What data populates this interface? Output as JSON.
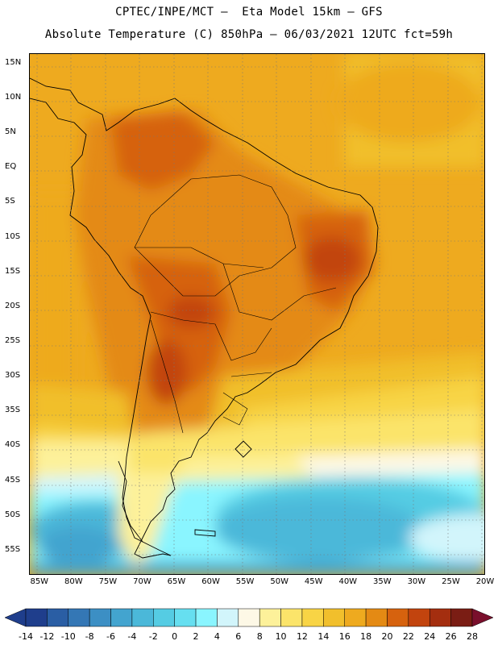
{
  "header": {
    "line1": "CPTEC/INPE/MCT –  Eta Model 15km – GFS",
    "line2": "Absolute Temperature (C) 850hPa – 06/03/2021 12UTC fct=59h"
  },
  "map": {
    "lat_labels": [
      "15N",
      "10N",
      "5N",
      "EQ",
      "5S",
      "10S",
      "15S",
      "20S",
      "25S",
      "30S",
      "35S",
      "40S",
      "45S",
      "50S",
      "55S"
    ],
    "lon_labels": [
      "85W",
      "80W",
      "75W",
      "70W",
      "65W",
      "60W",
      "55W",
      "50W",
      "45W",
      "40W",
      "35W",
      "30W",
      "25W",
      "20W"
    ],
    "lat_range": [
      16.5,
      -58.5
    ],
    "lon_range": [
      -86.5,
      -20
    ]
  },
  "colorbar": {
    "labels": [
      "-14",
      "-12",
      "-10",
      "-8",
      "-6",
      "-4",
      "-2",
      "0",
      "2",
      "4",
      "6",
      "8",
      "10",
      "12",
      "14",
      "16",
      "18",
      "20",
      "22",
      "24",
      "26",
      "28"
    ],
    "colors": [
      "#1f3e8c",
      "#2a5ea4",
      "#3477b5",
      "#3c8fc4",
      "#43a4cf",
      "#4bb8d9",
      "#55cce3",
      "#66dff0",
      "#8af5ff",
      "#d2f5fb",
      "#fdf8e6",
      "#fdf19a",
      "#fbe46a",
      "#f8d445",
      "#f1bf2c",
      "#eeaa1f",
      "#e48a14",
      "#d6620e",
      "#c2440e",
      "#a42e0f",
      "#7a1d14"
    ],
    "under_color": "#1f3e8c",
    "over_color": "#7a0f2c"
  }
}
